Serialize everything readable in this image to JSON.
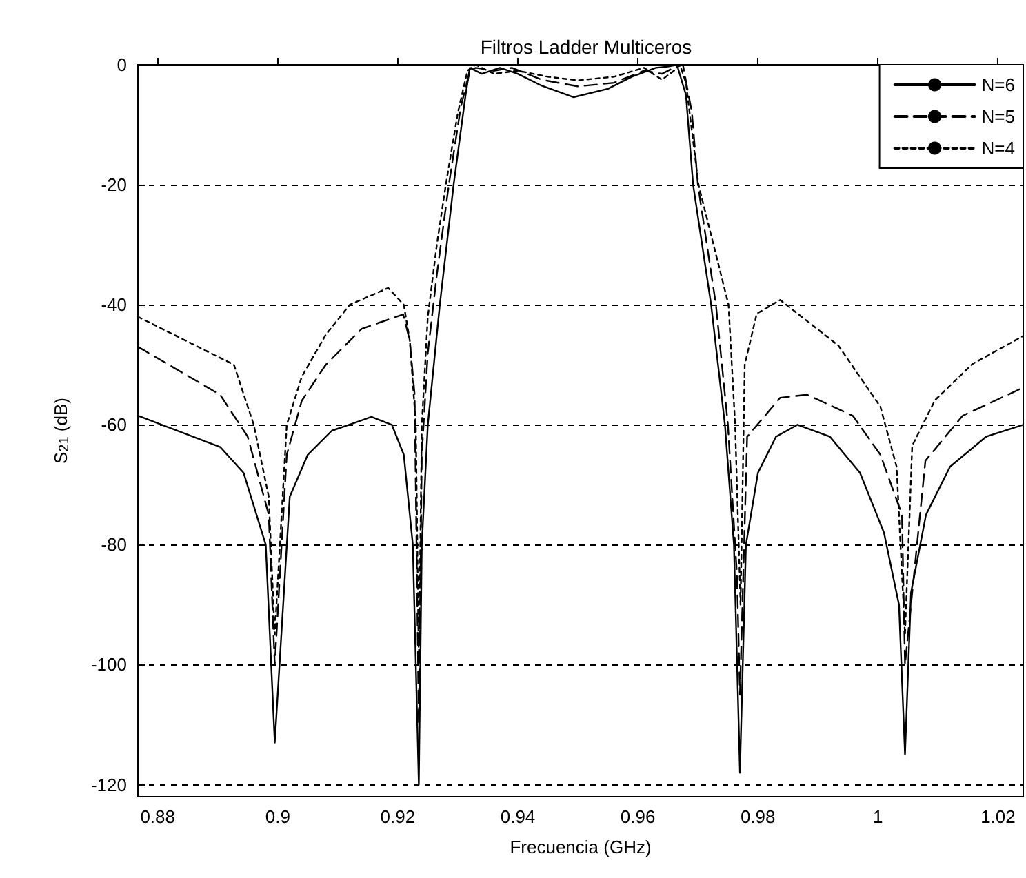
{
  "chart_data": {
    "type": "line",
    "title": "Filtros Ladder Multiceros",
    "xlabel": "Frecuencia (GHz)",
    "ylabel": "S$_{21}$ (dB)",
    "xlim": [
      0.8767,
      1.0242
    ],
    "xticks": [
      0.88,
      0.9,
      0.92,
      0.94,
      0.96,
      0.98,
      1,
      1.02
    ],
    "ylim": [
      -122,
      0
    ],
    "yticks": [
      0,
      -20,
      -40,
      -60,
      -80,
      -100,
      -120
    ],
    "grid": "y",
    "legend": "top right",
    "marker": "none",
    "series": [
      {
        "name": "N=6",
        "color": "#000000",
        "line_style": "solid",
        "x": [
          0.8767,
          0.8904,
          0.8943,
          0.898,
          0.8995,
          0.902,
          0.905,
          0.909,
          0.9156,
          0.919,
          0.921,
          0.9225,
          0.9235,
          0.924,
          0.925,
          0.927,
          0.9293,
          0.9313,
          0.932,
          0.934,
          0.937,
          0.94,
          0.944,
          0.9493,
          0.955,
          0.959,
          0.963,
          0.965,
          0.9665,
          0.968,
          0.9692,
          0.9722,
          0.9745,
          0.976,
          0.977,
          0.978,
          0.98,
          0.983,
          0.9866,
          0.992,
          0.997,
          1.001,
          1.0035,
          1.0045,
          1.0055,
          1.008,
          1.012,
          1.018,
          1.0242
        ],
        "values": [
          -58.5,
          -63.7,
          -68,
          -80,
          -113,
          -72,
          -65,
          -61,
          -58.7,
          -60,
          -65,
          -80,
          -120,
          -80,
          -60,
          -40,
          -20,
          -5,
          -0.5,
          -1.5,
          -0.5,
          -1.5,
          -3.5,
          -5.4,
          -4,
          -2,
          -0.5,
          -0.3,
          0,
          -5,
          -20,
          -40,
          -60,
          -80,
          -118,
          -80,
          -68,
          -62,
          -60,
          -62,
          -68,
          -78,
          -90,
          -115,
          -88,
          -75,
          -67,
          -62,
          -60
        ]
      },
      {
        "name": "N=5",
        "color": "#000000",
        "line_style": "dashed",
        "x": [
          0.8767,
          0.8904,
          0.895,
          0.8985,
          0.8995,
          0.9015,
          0.904,
          0.908,
          0.914,
          0.9209,
          0.922,
          0.9228,
          0.9235,
          0.924,
          0.925,
          0.9265,
          0.9285,
          0.9305,
          0.932,
          0.933,
          0.936,
          0.939,
          0.944,
          0.95,
          0.956,
          0.961,
          0.964,
          0.966,
          0.9675,
          0.969,
          0.97,
          0.973,
          0.975,
          0.9765,
          0.977,
          0.9782,
          0.9837,
          0.9882,
          0.9958,
          1.0004,
          1.004,
          1.0045,
          1.0079,
          1.0141,
          1.0242
        ],
        "values": [
          -47,
          -55,
          -62,
          -75,
          -100,
          -65,
          -56,
          -50,
          -44,
          -41.6,
          -46,
          -55,
          -110,
          -65,
          -48,
          -35,
          -20,
          -7,
          -1,
          -0.5,
          -1,
          -0.5,
          -2.5,
          -3.6,
          -3,
          -1,
          -1.5,
          -0.5,
          0,
          -8,
          -20,
          -40,
          -60,
          -85,
          -105,
          -62,
          -55.5,
          -55,
          -58.5,
          -65,
          -75,
          -100,
          -66,
          -58.5,
          -53.8
        ]
      },
      {
        "name": "N=4",
        "color": "#000000",
        "line_style": "dotted",
        "x": [
          0.8767,
          0.8927,
          0.896,
          0.8985,
          0.8995,
          0.9015,
          0.904,
          0.908,
          0.912,
          0.9184,
          0.921,
          0.922,
          0.923,
          0.9235,
          0.924,
          0.925,
          0.9265,
          0.928,
          0.93,
          0.9316,
          0.933,
          0.936,
          0.94,
          0.945,
          0.95,
          0.956,
          0.961,
          0.964,
          0.966,
          0.967,
          0.968,
          0.9701,
          0.9751,
          0.9762,
          0.9771,
          0.9778,
          0.9798,
          0.9837,
          0.9934,
          1.0004,
          1.0031,
          1.0045,
          1.0057,
          1.0095,
          1.0157,
          1.0242
        ],
        "values": [
          -42,
          -50,
          -60,
          -72,
          -95,
          -60,
          -52,
          -45,
          -40,
          -37.2,
          -40,
          -46,
          -60,
          -100,
          -60,
          -42,
          -30,
          -20,
          -8,
          -1,
          0,
          -1.5,
          -1,
          -2,
          -2.6,
          -2,
          -0.5,
          -2.5,
          -1,
          0,
          -3,
          -20,
          -40,
          -60,
          -90,
          -50,
          -41.5,
          -39.2,
          -46.8,
          -57,
          -67,
          -95,
          -63.5,
          -55.9,
          -49.9,
          -45.2
        ]
      }
    ]
  }
}
